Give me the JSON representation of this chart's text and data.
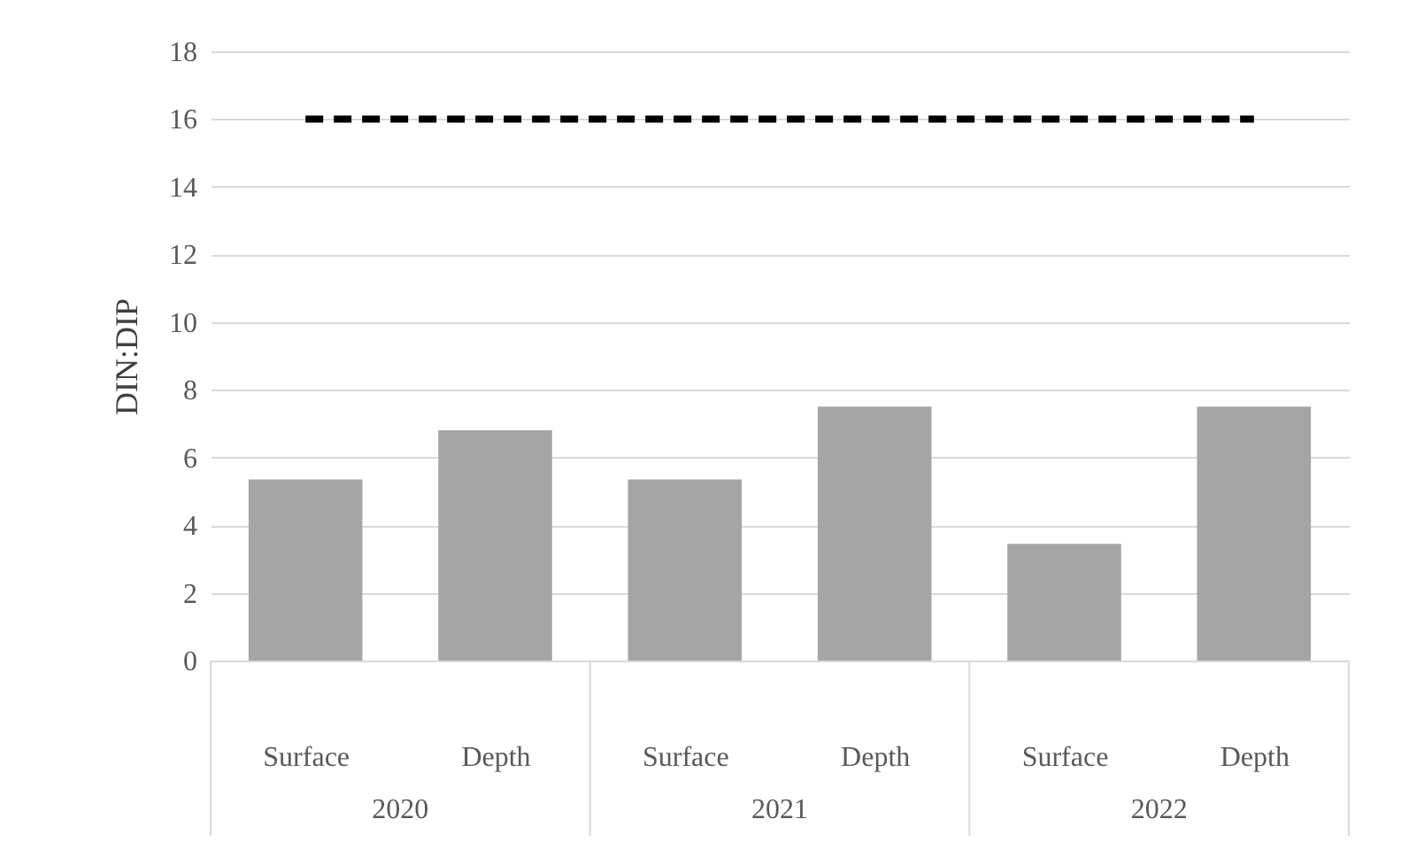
{
  "chart_data": {
    "type": "bar",
    "ylabel": "DIN:DIP",
    "categories": [
      "Surface",
      "Depth",
      "Surface",
      "Depth",
      "Surface",
      "Depth"
    ],
    "values": [
      5.35,
      6.8,
      5.35,
      7.5,
      3.45,
      7.5
    ],
    "color": "#a5a5a5",
    "ylim": [
      0,
      18
    ],
    "yticks": [
      0,
      2,
      4,
      6,
      8,
      10,
      12,
      14,
      16,
      18
    ],
    "grid": "y",
    "ref_lines": [
      {
        "axis": "y",
        "value": 16,
        "color": "#000000",
        "line_style": "dashed"
      }
    ],
    "annotations": [
      "2020",
      "2021",
      "2022"
    ]
  }
}
